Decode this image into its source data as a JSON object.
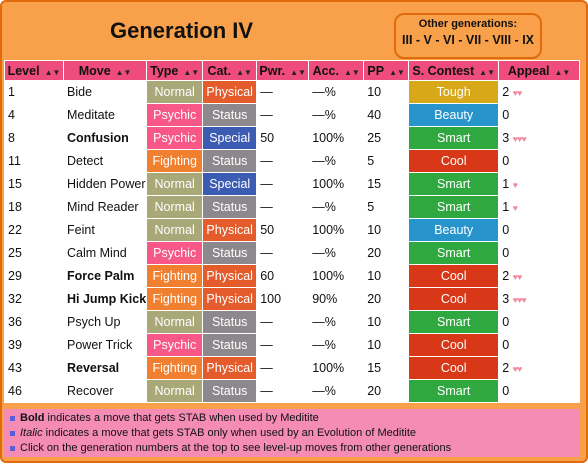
{
  "title": "Generation IV",
  "other_generations": {
    "label": "Other generations:",
    "links": [
      "III",
      "V",
      "VI",
      "VII",
      "VIII",
      "IX"
    ],
    "separator": " - "
  },
  "columns": [
    "Level",
    "Move",
    "Type",
    "Cat.",
    "Pwr.",
    "Acc.",
    "PP",
    "S. Contest",
    "Appeal"
  ],
  "sort_icon": "sort-arrows-icon",
  "colors": {
    "Normal": "#a8a878",
    "Psychic": "#f85888",
    "Fighting": "#f08030",
    "Physical": "#e45c2c",
    "Status": "#8c888c",
    "Special": "#3c5cb4",
    "Tough": "#d8a818",
    "Beauty": "#2894cc",
    "Smart": "#30a840",
    "Cool": "#d83818",
    "header": "#ee4c7c",
    "panel": "#f9a04a",
    "footer": "#f48cb4"
  },
  "rows": [
    {
      "level": "1",
      "move": "Bide",
      "bold": false,
      "type": "Normal",
      "cat": "Physical",
      "pwr": "—",
      "acc": "—%",
      "pp": "10",
      "contest": "Tough",
      "appeal": "2",
      "hearts": "♥♥"
    },
    {
      "level": "4",
      "move": "Meditate",
      "bold": false,
      "type": "Psychic",
      "cat": "Status",
      "pwr": "—",
      "acc": "—%",
      "pp": "40",
      "contest": "Beauty",
      "appeal": "0",
      "hearts": ""
    },
    {
      "level": "8",
      "move": "Confusion",
      "bold": true,
      "type": "Psychic",
      "cat": "Special",
      "pwr": "50",
      "acc": "100%",
      "pp": "25",
      "contest": "Smart",
      "appeal": "3",
      "hearts": "♥♥♥"
    },
    {
      "level": "11",
      "move": "Detect",
      "bold": false,
      "type": "Fighting",
      "cat": "Status",
      "pwr": "—",
      "acc": "—%",
      "pp": "5",
      "contest": "Cool",
      "appeal": "0",
      "hearts": ""
    },
    {
      "level": "15",
      "move": "Hidden Power",
      "bold": false,
      "type": "Normal",
      "cat": "Special",
      "pwr": "—",
      "acc": "100%",
      "pp": "15",
      "contest": "Smart",
      "appeal": "1",
      "hearts": "♥"
    },
    {
      "level": "18",
      "move": "Mind Reader",
      "bold": false,
      "type": "Normal",
      "cat": "Status",
      "pwr": "—",
      "acc": "—%",
      "pp": "5",
      "contest": "Smart",
      "appeal": "1",
      "hearts": "♥"
    },
    {
      "level": "22",
      "move": "Feint",
      "bold": false,
      "type": "Normal",
      "cat": "Physical",
      "pwr": "50",
      "acc": "100%",
      "pp": "10",
      "contest": "Beauty",
      "appeal": "0",
      "hearts": ""
    },
    {
      "level": "25",
      "move": "Calm Mind",
      "bold": false,
      "type": "Psychic",
      "cat": "Status",
      "pwr": "—",
      "acc": "—%",
      "pp": "20",
      "contest": "Smart",
      "appeal": "0",
      "hearts": ""
    },
    {
      "level": "29",
      "move": "Force Palm",
      "bold": true,
      "type": "Fighting",
      "cat": "Physical",
      "pwr": "60",
      "acc": "100%",
      "pp": "10",
      "contest": "Cool",
      "appeal": "2",
      "hearts": "♥♥"
    },
    {
      "level": "32",
      "move": "Hi Jump Kick",
      "bold": true,
      "type": "Fighting",
      "cat": "Physical",
      "pwr": "100",
      "acc": "90%",
      "pp": "20",
      "contest": "Cool",
      "appeal": "3",
      "hearts": "♥♥♥"
    },
    {
      "level": "36",
      "move": "Psych Up",
      "bold": false,
      "type": "Normal",
      "cat": "Status",
      "pwr": "—",
      "acc": "—%",
      "pp": "10",
      "contest": "Smart",
      "appeal": "0",
      "hearts": ""
    },
    {
      "level": "39",
      "move": "Power Trick",
      "bold": false,
      "type": "Psychic",
      "cat": "Status",
      "pwr": "—",
      "acc": "—%",
      "pp": "10",
      "contest": "Cool",
      "appeal": "0",
      "hearts": ""
    },
    {
      "level": "43",
      "move": "Reversal",
      "bold": true,
      "type": "Fighting",
      "cat": "Physical",
      "pwr": "—",
      "acc": "100%",
      "pp": "15",
      "contest": "Cool",
      "appeal": "2",
      "hearts": "♥♥"
    },
    {
      "level": "46",
      "move": "Recover",
      "bold": false,
      "type": "Normal",
      "cat": "Status",
      "pwr": "—",
      "acc": "—%",
      "pp": "20",
      "contest": "Smart",
      "appeal": "0",
      "hearts": ""
    }
  ],
  "footer": {
    "bold_word": "Bold",
    "bold_text": " indicates a move that gets STAB when used by Meditite",
    "italic_word": "Italic",
    "italic_text": " indicates a move that gets STAB only when used by an Evolution of Meditite",
    "click_text": "Click on the generation numbers at the top to see level-up moves from other generations"
  }
}
